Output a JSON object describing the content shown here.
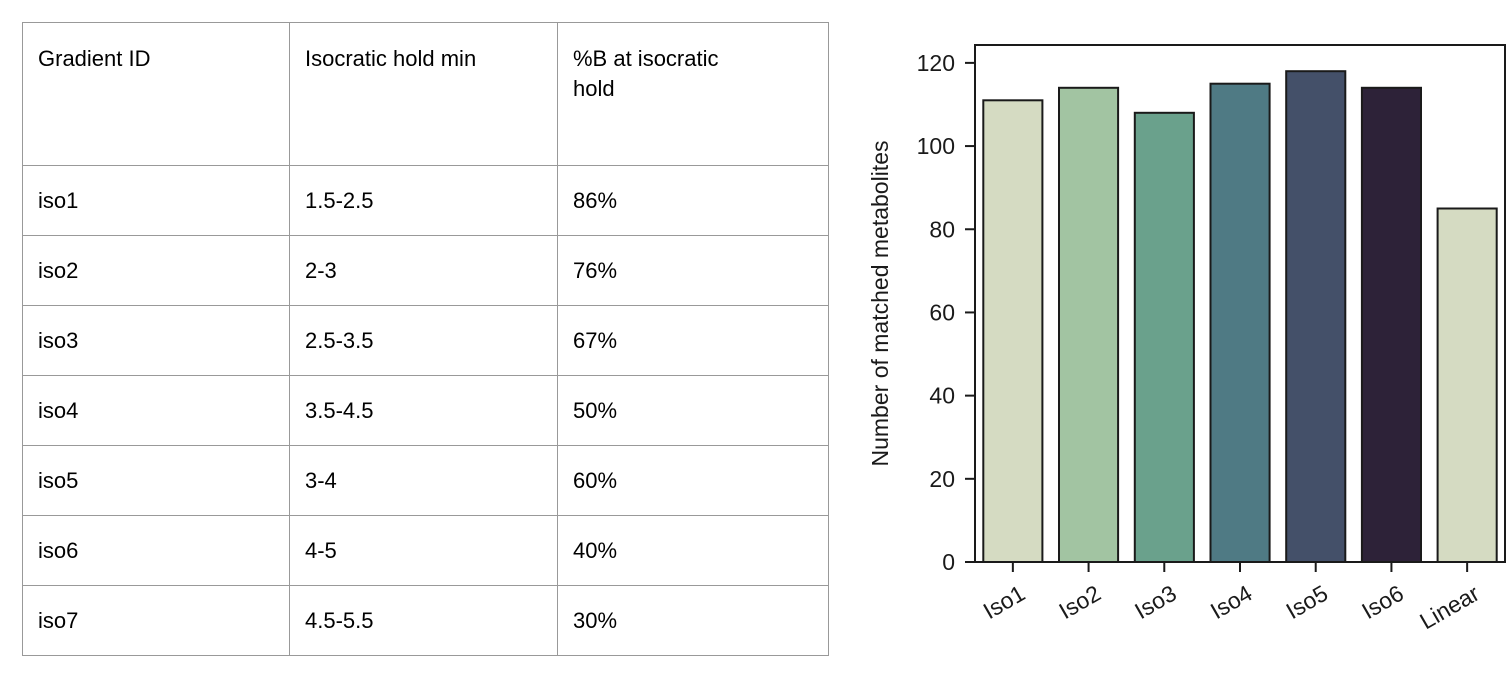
{
  "table": {
    "columns": [
      "Gradient ID",
      "Isocratic hold min",
      "%B at isocratic hold"
    ],
    "rows": [
      [
        "iso1",
        "1.5-2.5",
        "86%"
      ],
      [
        "iso2",
        "2-3",
        "76%"
      ],
      [
        "iso3",
        "2.5-3.5",
        "67%"
      ],
      [
        "iso4",
        "3.5-4.5",
        "50%"
      ],
      [
        "iso5",
        "3-4",
        "60%"
      ],
      [
        "iso6",
        "4-5",
        "40%"
      ],
      [
        "iso7",
        "4.5-5.5",
        "30%"
      ]
    ]
  },
  "chart_data": {
    "type": "bar",
    "categories": [
      "Iso1",
      "Iso2",
      "Iso3",
      "Iso4",
      "Iso5",
      "Iso6",
      "Linear"
    ],
    "values": [
      111,
      114,
      108,
      115,
      118,
      114,
      85
    ],
    "bar_colors": [
      "#d5dbc2",
      "#a2c4a2",
      "#6aa18c",
      "#4f7a84",
      "#445069",
      "#2d2238",
      "#d5dbc2"
    ],
    "edge_color": "#1a1a1a",
    "title": "",
    "xlabel": "",
    "ylabel": "Number of matched metabolites",
    "ylim": [
      0,
      124.3
    ],
    "yticks": [
      0,
      20,
      40,
      60,
      80,
      100,
      120
    ],
    "xtick_rotation": -30,
    "grid": "off",
    "legend": "none",
    "background": "#ffffff"
  }
}
